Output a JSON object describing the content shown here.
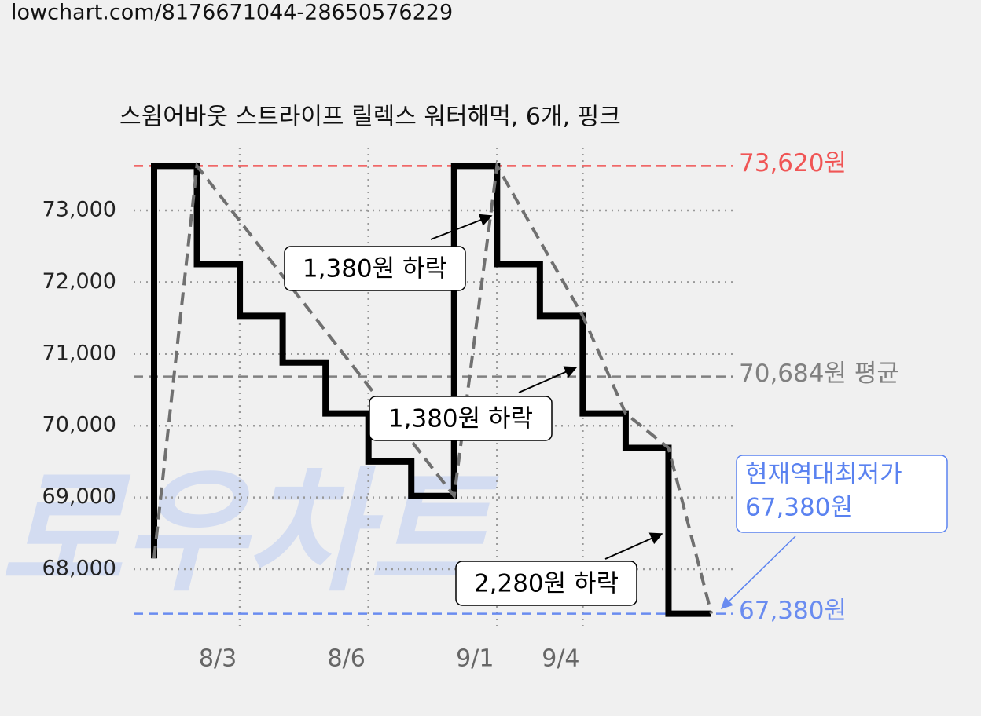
{
  "url": "lowchart.com/8176671044-28650576229",
  "chart_data": {
    "type": "step",
    "title": "스윔어바웃 스트라이프 릴렉스 워터해먹, 6개, 핑크",
    "watermark": "로우차트",
    "xlim": [
      0,
      13
    ],
    "xticks": [
      {
        "value": 2,
        "label": "8/3"
      },
      {
        "value": 5,
        "label": "8/6"
      },
      {
        "value": 8,
        "label": "9/1"
      },
      {
        "value": 10,
        "label": "9/4"
      }
    ],
    "ylim": [
      67000,
      74000
    ],
    "yticks": [
      {
        "value": 68000,
        "label": "68,000"
      },
      {
        "value": 69000,
        "label": "69,000"
      },
      {
        "value": 70000,
        "label": "70,000"
      },
      {
        "value": 71000,
        "label": "71,000"
      },
      {
        "value": 72000,
        "label": "72,000"
      },
      {
        "value": 73000,
        "label": "73,000"
      }
    ],
    "grid": true,
    "series": [
      {
        "color": "#000000",
        "style": "solid",
        "step": true,
        "x": [
          0,
          0,
          1,
          2,
          3,
          4,
          5,
          6,
          7,
          8,
          9,
          10,
          11,
          12,
          13
        ],
        "values": [
          68150,
          73620,
          72250,
          71530,
          70880,
          70170,
          69500,
          69020,
          73620,
          72250,
          71530,
          70170,
          69690,
          67380,
          67380
        ]
      },
      {
        "color": "#707070",
        "style": "dashed",
        "step": false,
        "x": [
          0,
          1,
          7,
          8,
          10,
          11,
          12,
          13
        ],
        "values": [
          68150,
          73620,
          69020,
          73620,
          71530,
          70170,
          69690,
          67380
        ]
      }
    ],
    "reference_lines": [
      {
        "value": 73620,
        "label": "73,620원",
        "color": "#f05555"
      },
      {
        "value": 70684,
        "label": "70,684원 평균",
        "color": "#808080"
      },
      {
        "value": 67380,
        "label": "67,380원",
        "color": "#6a8cf0"
      }
    ],
    "annotations": [
      {
        "text": "1,380원 하락"
      },
      {
        "text": "1,380원 하락"
      },
      {
        "text": "2,280원 하락"
      },
      {
        "lines": [
          "현재역대최저가",
          "67,380원"
        ],
        "color": "#5a82f0"
      }
    ]
  }
}
